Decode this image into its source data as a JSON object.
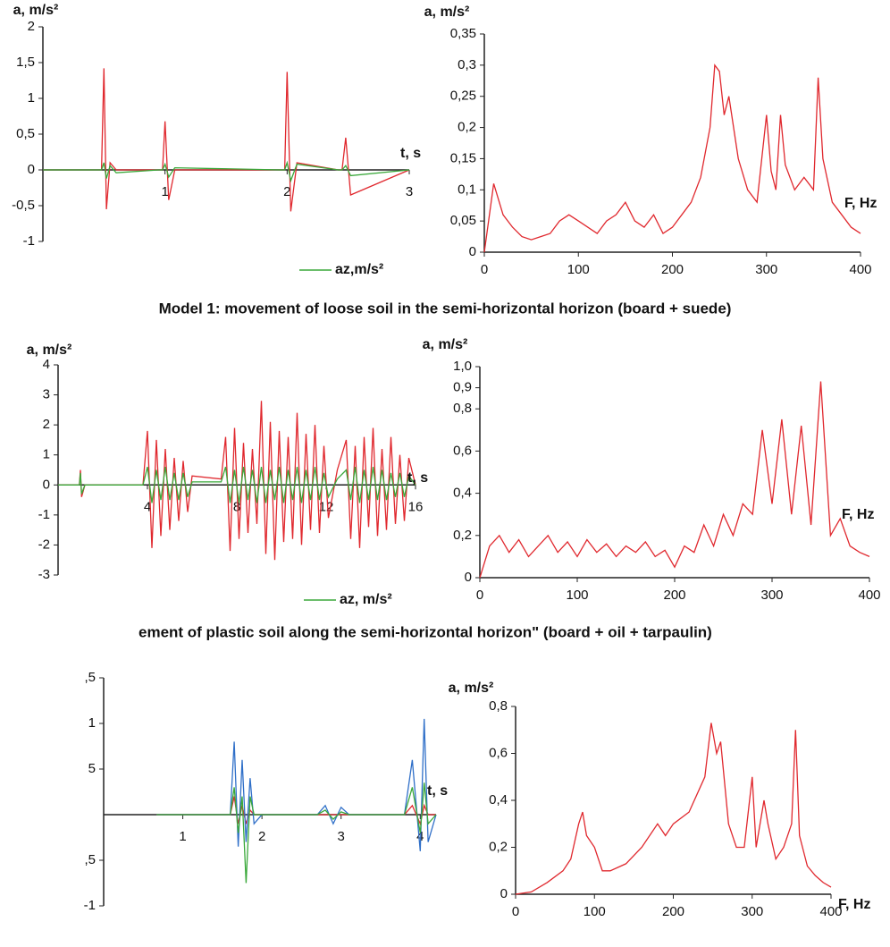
{
  "captions": [
    "Model 1: movement of loose soil in the semi-horizontal horizon (board + suede)",
    "ement of plastic soil along the semi-horizontal horizon\" (board + oil + tarpaulin)"
  ],
  "chart_data": [
    {
      "type": "line",
      "y_label": "a, m/s²",
      "x_label": "t, s",
      "xlim": [
        0,
        3
      ],
      "xticks": [
        1,
        2,
        3
      ],
      "ylim": [
        -1,
        2
      ],
      "yticks": [
        -1,
        {
          "value": -0.5,
          "label": "-0,5"
        },
        0,
        {
          "value": 0.5,
          "label": "0,5"
        },
        1,
        {
          "value": 1.5,
          "label": "1,5"
        },
        2
      ],
      "x": [
        0,
        0.48,
        0.5,
        0.52,
        0.55,
        0.6,
        0.95,
        0.98,
        1.0,
        1.03,
        1.08,
        1.95,
        1.98,
        2.0,
        2.03,
        2.08,
        2.42,
        2.45,
        2.48,
        2.52,
        3
      ],
      "series": [
        {
          "color": "#e0282e",
          "values": [
            0,
            0,
            1.42,
            -0.55,
            0.1,
            0,
            0,
            0,
            0.68,
            -0.42,
            0,
            0,
            0,
            1.37,
            -0.58,
            0.1,
            0,
            0,
            0.45,
            -0.35,
            0
          ]
        },
        {
          "name": "az,m/s²",
          "color": "#3aa83a",
          "values": [
            0,
            0,
            0.1,
            -0.12,
            0.06,
            -0.04,
            0,
            0,
            0.08,
            -0.1,
            0.03,
            0,
            0,
            0.1,
            -0.15,
            0.08,
            0,
            0,
            0.06,
            -0.08,
            0
          ]
        }
      ]
    },
    {
      "type": "line",
      "y_label": "a, m/s²",
      "x_label": "F, Hz",
      "xlim": [
        0,
        400
      ],
      "xticks": [
        0,
        100,
        200,
        300,
        400
      ],
      "ylim": [
        0,
        0.35
      ],
      "yticks": [
        0,
        {
          "value": 0.05,
          "label": "0,05"
        },
        {
          "value": 0.1,
          "label": "0,1"
        },
        {
          "value": 0.15,
          "label": "0,15"
        },
        {
          "value": 0.2,
          "label": "0,2"
        },
        {
          "value": 0.25,
          "label": "0,25"
        },
        {
          "value": 0.3,
          "label": "0,3"
        },
        {
          "value": 0.35,
          "label": "0,35"
        }
      ],
      "x": [
        0,
        10,
        20,
        30,
        40,
        50,
        60,
        70,
        80,
        90,
        100,
        110,
        120,
        130,
        140,
        150,
        160,
        170,
        180,
        190,
        200,
        210,
        220,
        230,
        240,
        245,
        250,
        255,
        260,
        270,
        280,
        290,
        300,
        305,
        310,
        315,
        320,
        330,
        340,
        350,
        355,
        360,
        370,
        380,
        390,
        400
      ],
      "series": [
        {
          "color": "#e0282e",
          "values": [
            0,
            0.11,
            0.06,
            0.04,
            0.025,
            0.02,
            0.025,
            0.03,
            0.05,
            0.06,
            0.05,
            0.04,
            0.03,
            0.05,
            0.06,
            0.08,
            0.05,
            0.04,
            0.06,
            0.03,
            0.04,
            0.06,
            0.08,
            0.12,
            0.2,
            0.3,
            0.29,
            0.22,
            0.25,
            0.15,
            0.1,
            0.08,
            0.22,
            0.13,
            0.1,
            0.22,
            0.14,
            0.1,
            0.12,
            0.1,
            0.28,
            0.15,
            0.08,
            0.06,
            0.04,
            0.03
          ]
        }
      ]
    },
    {
      "type": "line",
      "y_label": "a, m/s²",
      "x_label": "t, s",
      "xlim": [
        0,
        16
      ],
      "xticks": [
        4,
        8,
        12,
        16
      ],
      "ylim": [
        -3,
        4
      ],
      "yticks": [
        -3,
        -2,
        -1,
        0,
        1,
        2,
        3,
        4
      ],
      "x": [
        0,
        0.95,
        1.0,
        1.05,
        1.2,
        3.0,
        3.8,
        4.0,
        4.2,
        4.4,
        4.6,
        4.8,
        5.0,
        5.2,
        5.4,
        5.6,
        5.8,
        6.0,
        7.3,
        7.5,
        7.7,
        7.9,
        8.1,
        8.3,
        8.5,
        8.7,
        8.9,
        9.1,
        9.3,
        9.5,
        9.7,
        9.9,
        10.1,
        10.3,
        10.5,
        10.7,
        10.9,
        11.1,
        11.3,
        11.5,
        11.7,
        11.9,
        12.1,
        12.5,
        12.9,
        13.1,
        13.3,
        13.5,
        13.7,
        13.9,
        14.1,
        14.3,
        14.5,
        14.7,
        14.9,
        15.1,
        15.3,
        15.5,
        15.7,
        16.0
      ],
      "series": [
        {
          "color": "#e0282e",
          "values": [
            0,
            0,
            0.5,
            -0.4,
            0,
            0,
            0,
            1.8,
            -2.1,
            1.5,
            -1.7,
            1.2,
            -1.5,
            0.9,
            -1.2,
            0.8,
            -0.9,
            0.3,
            0.2,
            1.6,
            -2.2,
            1.9,
            -1.8,
            1.4,
            -1.6,
            1.2,
            -1.3,
            2.8,
            -2.3,
            2.1,
            -2.5,
            1.8,
            -1.9,
            1.6,
            -1.8,
            2.4,
            -2.0,
            1.7,
            -1.5,
            2.0,
            -1.6,
            1.3,
            -1.1,
            0.5,
            1.5,
            -1.8,
            1.3,
            -2.1,
            1.6,
            -1.4,
            1.9,
            -1.7,
            1.2,
            -1.5,
            1.6,
            -1.3,
            1.0,
            -1.2,
            0.9,
            0
          ]
        },
        {
          "name": "az, m/s²",
          "color": "#3aa83a",
          "values": [
            0,
            0,
            0.4,
            -0.3,
            0,
            0,
            0,
            0.6,
            -0.6,
            0.5,
            -0.5,
            0.6,
            -0.5,
            0.4,
            -0.5,
            0.4,
            -0.4,
            0.1,
            0.1,
            0.6,
            -0.6,
            0.5,
            -0.6,
            0.6,
            -0.5,
            0.5,
            -0.6,
            0.6,
            -0.6,
            0.5,
            -0.5,
            0.6,
            -0.6,
            0.5,
            -0.5,
            0.6,
            -0.6,
            0.5,
            -0.5,
            0.6,
            -0.5,
            0.4,
            -0.4,
            0.2,
            0.5,
            -0.5,
            0.6,
            -0.6,
            0.5,
            -0.5,
            0.6,
            -0.5,
            0.5,
            -0.5,
            0.4,
            -0.4,
            0.4,
            -0.4,
            0.3,
            0
          ]
        }
      ]
    },
    {
      "type": "line",
      "y_label": "a, m/s²",
      "x_label": "F, Hz",
      "xlim": [
        0,
        400
      ],
      "xticks": [
        0,
        100,
        200,
        300,
        400
      ],
      "ylim": [
        0,
        1.0
      ],
      "yticks": [
        0,
        {
          "value": 0.2,
          "label": "0,2"
        },
        {
          "value": 0.4,
          "label": "0,4"
        },
        {
          "value": 0.6,
          "label": "0,6"
        },
        {
          "value": 0.8,
          "label": "0,8"
        },
        {
          "value": 0.9,
          "label": "0,9"
        },
        {
          "value": 1.0,
          "label": "1,0"
        }
      ],
      "x": [
        0,
        10,
        20,
        30,
        40,
        50,
        60,
        70,
        80,
        90,
        100,
        110,
        120,
        130,
        140,
        150,
        160,
        170,
        180,
        190,
        200,
        210,
        220,
        230,
        240,
        250,
        260,
        270,
        280,
        290,
        300,
        310,
        320,
        330,
        340,
        350,
        360,
        370,
        380,
        390,
        400
      ],
      "series": [
        {
          "color": "#e0282e",
          "values": [
            0,
            0.15,
            0.2,
            0.12,
            0.18,
            0.1,
            0.15,
            0.2,
            0.12,
            0.17,
            0.1,
            0.18,
            0.12,
            0.16,
            0.1,
            0.15,
            0.12,
            0.17,
            0.1,
            0.13,
            0.05,
            0.15,
            0.12,
            0.25,
            0.15,
            0.3,
            0.2,
            0.35,
            0.3,
            0.7,
            0.35,
            0.75,
            0.3,
            0.72,
            0.25,
            0.93,
            0.2,
            0.28,
            0.15,
            0.12,
            0.1
          ]
        }
      ]
    },
    {
      "type": "line",
      "x_label": "t, s",
      "xlim": [
        0,
        4.2
      ],
      "xticks": [
        1,
        2,
        3,
        4
      ],
      "ylim": [
        -1,
        1.5
      ],
      "yticks": [
        -1,
        {
          "value": -0.5,
          "label": ",5"
        },
        {
          "value": 0.5,
          "label": "5"
        },
        1,
        {
          "value": 1.5,
          "label": ",5"
        }
      ],
      "x": [
        0.67,
        1.6,
        1.65,
        1.7,
        1.75,
        1.8,
        1.85,
        1.9,
        2.0,
        2.7,
        2.8,
        2.9,
        3.0,
        3.1,
        3.8,
        3.9,
        4.0,
        4.05,
        4.1,
        4.2
      ],
      "series": [
        {
          "color": "#e0282e",
          "values": [
            0,
            0,
            0.2,
            -0.1,
            0.1,
            -0.1,
            0.05,
            0,
            0,
            0,
            0,
            0,
            0,
            0,
            0,
            0.1,
            -0.1,
            0.1,
            0,
            0
          ]
        },
        {
          "color": "#2f6fc8",
          "values": [
            0,
            0,
            0.8,
            -0.35,
            0.6,
            -0.3,
            0.4,
            -0.1,
            0,
            0,
            0.1,
            -0.1,
            0.08,
            0,
            0,
            0.6,
            -0.4,
            1.05,
            -0.3,
            0
          ]
        },
        {
          "color": "#3aa83a",
          "values": [
            0,
            0,
            0.3,
            -0.2,
            0.2,
            -0.75,
            0.2,
            0,
            0,
            0,
            0.05,
            -0.05,
            0.03,
            0,
            0,
            0.3,
            -0.2,
            0.35,
            -0.1,
            0
          ]
        }
      ]
    },
    {
      "type": "line",
      "y_label": "a, m/s²",
      "x_label": "F, Hz",
      "xlim": [
        0,
        400
      ],
      "xticks": [
        0,
        100,
        200,
        300,
        400
      ],
      "ylim": [
        0,
        0.8
      ],
      "yticks": [
        0,
        {
          "value": 0.2,
          "label": "0,2"
        },
        {
          "value": 0.4,
          "label": "0,4"
        },
        {
          "value": 0.6,
          "label": "0,6"
        },
        {
          "value": 0.8,
          "label": "0,8"
        }
      ],
      "x": [
        0,
        20,
        40,
        60,
        70,
        80,
        85,
        90,
        100,
        110,
        120,
        140,
        160,
        180,
        190,
        200,
        220,
        240,
        248,
        255,
        260,
        270,
        280,
        290,
        300,
        305,
        315,
        320,
        330,
        340,
        350,
        355,
        360,
        370,
        380,
        390,
        400
      ],
      "series": [
        {
          "color": "#e0282e",
          "values": [
            0,
            0.01,
            0.05,
            0.1,
            0.15,
            0.3,
            0.35,
            0.25,
            0.2,
            0.1,
            0.1,
            0.13,
            0.2,
            0.3,
            0.25,
            0.3,
            0.35,
            0.5,
            0.73,
            0.6,
            0.65,
            0.3,
            0.2,
            0.2,
            0.5,
            0.2,
            0.4,
            0.3,
            0.15,
            0.2,
            0.3,
            0.7,
            0.25,
            0.12,
            0.08,
            0.05,
            0.03
          ]
        }
      ]
    }
  ]
}
